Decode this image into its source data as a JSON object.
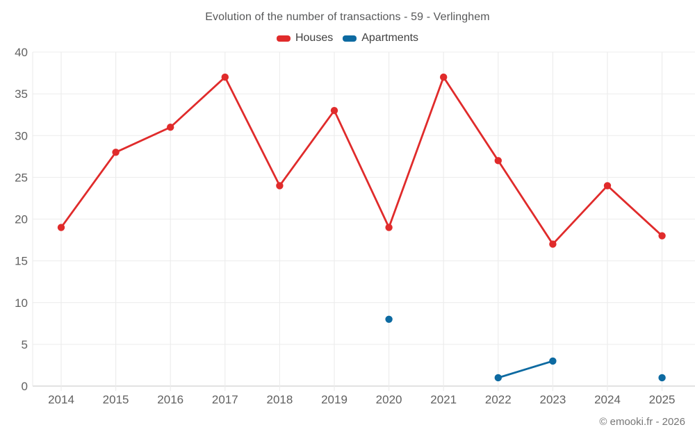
{
  "title": "Evolution of the number of transactions - 59 - Verlinghem",
  "footer": "© emooki.fr - 2026",
  "colors": {
    "houses": "#e02b2b",
    "apartments": "#0d6aa1",
    "grid": "#ececec",
    "axis": "#d8d8d8",
    "tick_text": "#616161",
    "plot_border": "#ececec"
  },
  "chart_data": {
    "type": "line",
    "title": "Evolution of the number of transactions - 59 - Verlinghem",
    "categories": [
      "2014",
      "2015",
      "2016",
      "2017",
      "2018",
      "2019",
      "2020",
      "2021",
      "2022",
      "2023",
      "2024",
      "2025"
    ],
    "series": [
      {
        "name": "Houses",
        "color": "#e02b2b",
        "values": [
          19,
          28,
          31,
          37,
          24,
          33,
          19,
          37,
          27,
          17,
          24,
          18
        ]
      },
      {
        "name": "Apartments",
        "color": "#0d6aa1",
        "values": [
          null,
          null,
          null,
          null,
          null,
          null,
          8,
          null,
          1,
          3,
          null,
          1
        ]
      }
    ],
    "xlabel": "",
    "ylabel": "",
    "ylim": [
      0,
      40
    ],
    "yticks": [
      0,
      5,
      10,
      15,
      20,
      25,
      30,
      35,
      40
    ],
    "grid": true,
    "legend_position": "top",
    "annotations": []
  }
}
